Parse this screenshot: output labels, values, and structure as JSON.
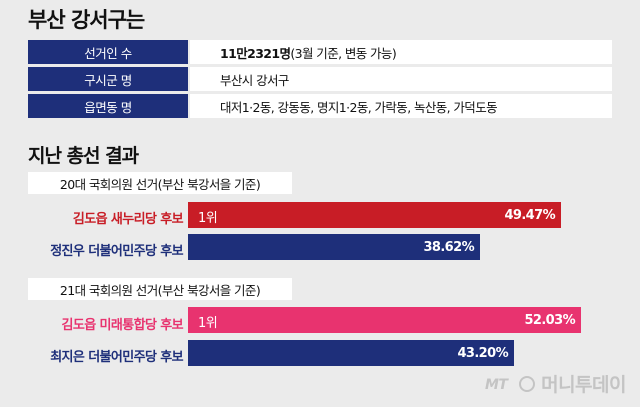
{
  "title": "부산 강서구는",
  "info": [
    {
      "label": "선거인 수",
      "value_bold": "11만2321명",
      "value_rest": "(3월 기준, 변동 가능)"
    },
    {
      "label": "구시군 명",
      "value_bold": "",
      "value_rest": "부산시 강서구"
    },
    {
      "label": "읍면동 명",
      "value_bold": "",
      "value_rest": "대저1·2동, 강동동, 명지1·2동, 가락동, 녹산동, 가덕도동"
    }
  ],
  "section_title": "지난 총선 결과",
  "colors": {
    "navy": "#1e2f7a",
    "dark_red": "#c81d26",
    "pink": "#e8336f",
    "name_red": "#c81d26",
    "name_blue": "#1e2f7a",
    "name_pink": "#e8336f"
  },
  "logo": {
    "text": "머니투데이",
    "prefix": "MT"
  },
  "chart_data": [
    {
      "type": "bar",
      "title": "20대 국회의원 선거(부산 북강서을 기준)",
      "categories": [
        "김도읍 새누리당 후보",
        "정진우 더불어민주당 후보"
      ],
      "values": [
        49.47,
        38.62
      ],
      "value_labels": [
        "49.47%",
        "38.62%"
      ],
      "rank_label": "1위",
      "xlim": [
        0,
        100
      ]
    },
    {
      "type": "bar",
      "title": "21대 국회의원 선거(부산 북강서을 기준)",
      "categories": [
        "김도읍 미래통합당 후보",
        "최지은 더불어민주당 후보"
      ],
      "values": [
        52.03,
        43.2
      ],
      "value_labels": [
        "52.03%",
        "43.20%"
      ],
      "rank_label": "1위",
      "xlim": [
        0,
        100
      ]
    }
  ]
}
